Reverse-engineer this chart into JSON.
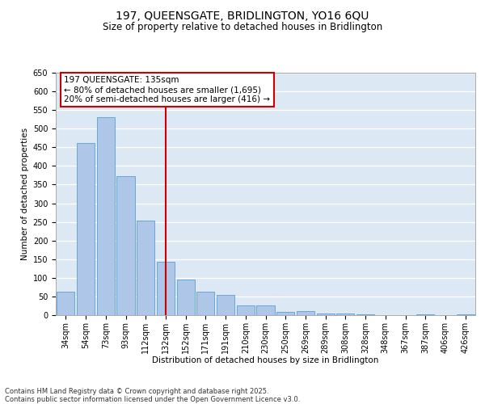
{
  "title_line1": "197, QUEENSGATE, BRIDLINGTON, YO16 6QU",
  "title_line2": "Size of property relative to detached houses in Bridlington",
  "xlabel": "Distribution of detached houses by size in Bridlington",
  "ylabel": "Number of detached properties",
  "categories": [
    "34sqm",
    "54sqm",
    "73sqm",
    "93sqm",
    "112sqm",
    "132sqm",
    "152sqm",
    "171sqm",
    "191sqm",
    "210sqm",
    "230sqm",
    "250sqm",
    "269sqm",
    "289sqm",
    "308sqm",
    "328sqm",
    "348sqm",
    "367sqm",
    "387sqm",
    "406sqm",
    "426sqm"
  ],
  "values": [
    62,
    462,
    530,
    372,
    253,
    142,
    95,
    63,
    55,
    27,
    27,
    9,
    11,
    5,
    5,
    2,
    1,
    1,
    2,
    1,
    2
  ],
  "bar_color": "#aec6e8",
  "bar_edge_color": "#5a9fd4",
  "vline_index": 5,
  "vline_color": "#cc0000",
  "ann_line1": "197 QUEENSGATE: 135sqm",
  "ann_line2": "← 80% of detached houses are smaller (1,695)",
  "ann_line3": "20% of semi-detached houses are larger (416) →",
  "ann_edge_color": "#cc0000",
  "ylim": [
    0,
    650
  ],
  "yticks": [
    0,
    50,
    100,
    150,
    200,
    250,
    300,
    350,
    400,
    450,
    500,
    550,
    600,
    650
  ],
  "bg_color": "#dce9f5",
  "grid_color": "#ffffff",
  "footer_line1": "Contains HM Land Registry data © Crown copyright and database right 2025.",
  "footer_line2": "Contains public sector information licensed under the Open Government Licence v3.0.",
  "title_fontsize": 10,
  "subtitle_fontsize": 8.5,
  "axis_label_fontsize": 7.5,
  "tick_fontsize": 7,
  "footer_fontsize": 6,
  "ann_fontsize": 7.5
}
